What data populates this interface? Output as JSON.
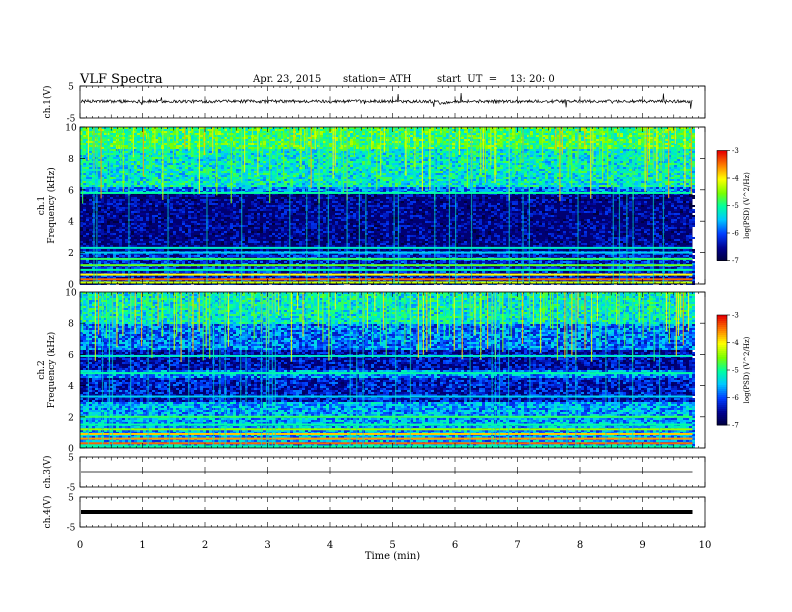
{
  "header": {
    "title": "VLF Spectra",
    "date": "Apr. 23, 2015",
    "station": "station= ATH",
    "start": "start  UT  =    13: 20: 0"
  },
  "chart_data": [
    {
      "type": "line",
      "name": "ch1-waveform",
      "ylabel": "ch.1(V)",
      "ylim": [
        -5,
        5
      ],
      "yticks": [
        "5",
        "-5"
      ],
      "xlim": [
        0,
        10
      ],
      "data_end_min": 9.8,
      "baseline_v": 0.2,
      "color": "#000000"
    },
    {
      "type": "heatmap",
      "name": "ch1-spectrogram",
      "ylabel_lines": [
        "ch.1",
        "Frequency  (kHz)"
      ],
      "ylim": [
        0,
        10
      ],
      "yticks": [
        "0",
        "2",
        "4",
        "6",
        "8",
        "10"
      ],
      "xlim": [
        0,
        10
      ],
      "data_end_min": 9.8,
      "colorbar": {
        "label": "log(PSD) (V^2/Hz)",
        "range": [
          -7,
          -3
        ],
        "ticks": [
          "-3",
          "-4",
          "-5",
          "-6",
          "-7"
        ]
      }
    },
    {
      "type": "heatmap",
      "name": "ch2-spectrogram",
      "ylabel_lines": [
        "ch.2",
        "Frequency  (kHz)"
      ],
      "ylim": [
        0,
        10
      ],
      "yticks": [
        "0",
        "2",
        "4",
        "6",
        "8",
        "10"
      ],
      "xlim": [
        0,
        10
      ],
      "data_end_min": 9.8,
      "colorbar": {
        "label": "log(PSD) (V^2/Hz)",
        "range": [
          -7,
          -3
        ],
        "ticks": [
          "-3",
          "-4",
          "-5",
          "-6",
          "-7"
        ]
      }
    },
    {
      "type": "line",
      "name": "ch3-waveform",
      "ylabel": "ch.3(V)",
      "ylim": [
        -5,
        5
      ],
      "yticks": [
        "5",
        "-5"
      ],
      "xlim": [
        0,
        10
      ],
      "data_end_min": 9.8,
      "baseline_v": 0,
      "color": "#000000"
    },
    {
      "type": "line",
      "name": "ch4-waveform",
      "ylabel": "ch.4(V)",
      "ylim": [
        -5,
        5
      ],
      "yticks": [
        "5",
        "-5"
      ],
      "xlim": [
        0,
        10
      ],
      "data_end_min": 9.8,
      "baseline_v": 0,
      "color": "#000000"
    }
  ],
  "xaxis": {
    "label": "Time  (min)",
    "ticks": [
      "0",
      "1",
      "2",
      "3",
      "4",
      "5",
      "6",
      "7",
      "8",
      "9",
      "10"
    ]
  }
}
